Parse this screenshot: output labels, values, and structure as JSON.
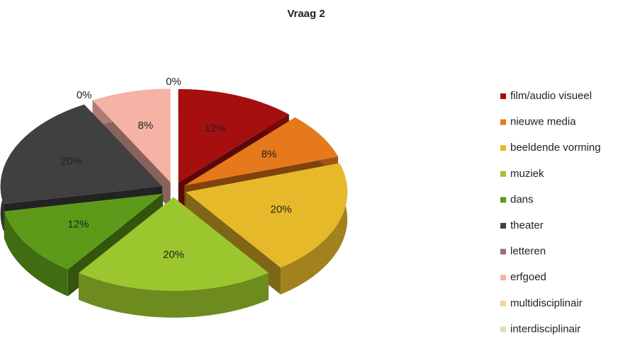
{
  "chart_data": {
    "type": "pie3d",
    "title": "Vraag 2",
    "categories": [
      "film/audio visueel",
      "nieuwe media",
      "beeldende vorming",
      "muziek",
      "dans",
      "theater",
      "letteren",
      "erfgoed",
      "multidisciplinair",
      "interdisciplinair"
    ],
    "values": [
      12,
      8,
      20,
      20,
      12,
      20,
      0,
      8,
      0,
      0
    ],
    "value_labels": [
      "12%",
      "8%",
      "20%",
      "20%",
      "12%",
      "20%",
      "0%",
      "8%",
      "0%",
      null
    ],
    "colors": [
      "#a50f0f",
      "#e5791c",
      "#e6b92a",
      "#9cc62d",
      "#5d9a1a",
      "#404040",
      "#9b7070",
      "#f7b2a6",
      "#f5d3a0",
      "#cfe3b8"
    ],
    "legend": "right"
  }
}
